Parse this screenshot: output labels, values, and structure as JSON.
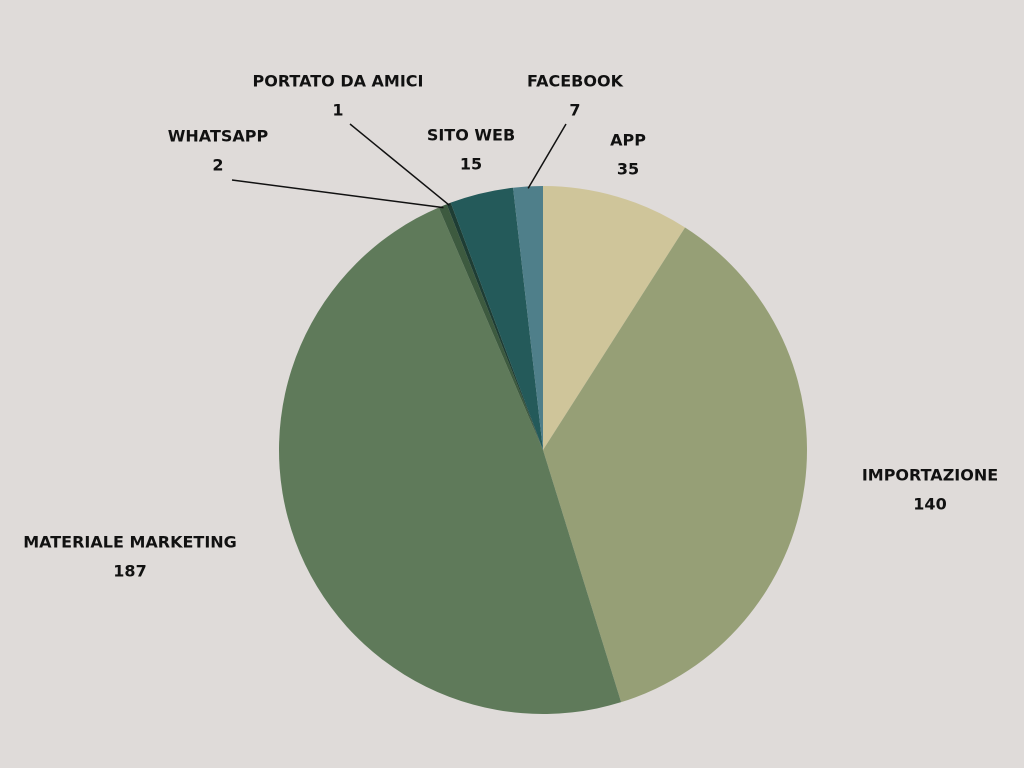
{
  "chart_data": {
    "type": "pie",
    "categories": [
      "APP",
      "IMPORTAZIONE",
      "MATERIALE MARKETING",
      "WHATSAPP",
      "PORTATO DA AMICI",
      "SITO WEB",
      "FACEBOOK"
    ],
    "values": [
      35,
      140,
      187,
      2,
      1,
      15,
      7
    ],
    "colors": [
      "#cfc59a",
      "#969f76",
      "#5f7a5a",
      "#3d5a3f",
      "#1e3d34",
      "#245a5a",
      "#4f7f8a"
    ]
  }
}
